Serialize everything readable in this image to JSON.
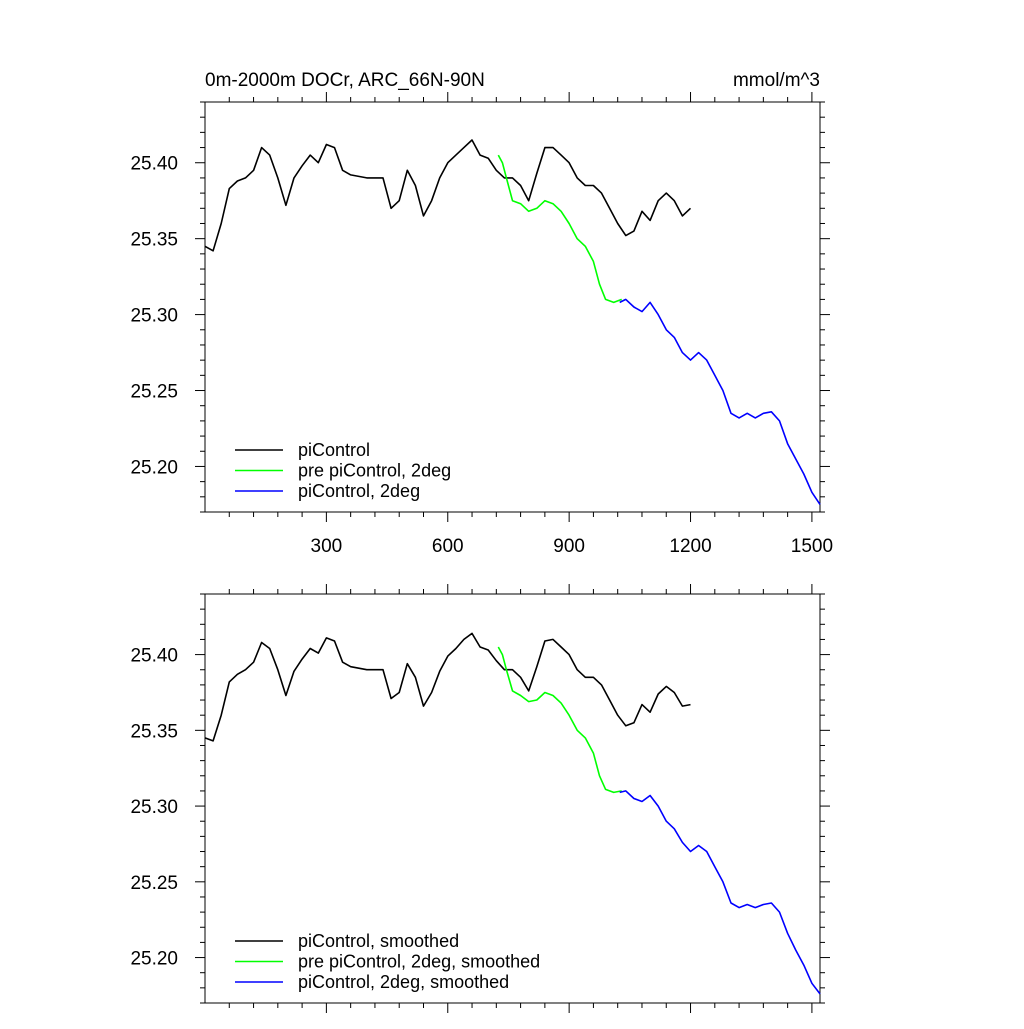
{
  "figure": {
    "title_left": "0m-2000m DOCr, ARC_66N-90N",
    "title_right": "mmol/m^3"
  },
  "colors": {
    "black": "#000000",
    "green": "#00ff00",
    "blue": "#0000ff"
  },
  "chart_data": [
    {
      "type": "line",
      "xlim": [
        0,
        1520
      ],
      "ylim": [
        25.17,
        25.44
      ],
      "x_ticks": [
        300,
        600,
        900,
        1200,
        1500
      ],
      "x_ticklabels": [
        "300",
        "600",
        "900",
        "1200",
        "1500"
      ],
      "y_ticks": [
        25.2,
        25.25,
        25.3,
        25.35,
        25.4
      ],
      "y_ticklabels": [
        "25.20",
        "25.25",
        "25.30",
        "25.35",
        "25.40"
      ],
      "legend": "bottom-left",
      "grid": false,
      "series": [
        {
          "name": "piControl",
          "color": "#000000",
          "points": [
            [
              0,
              25.345
            ],
            [
              20,
              25.342
            ],
            [
              40,
              25.36
            ],
            [
              60,
              25.383
            ],
            [
              80,
              25.388
            ],
            [
              100,
              25.39
            ],
            [
              120,
              25.395
            ],
            [
              140,
              25.41
            ],
            [
              160,
              25.405
            ],
            [
              180,
              25.39
            ],
            [
              200,
              25.372
            ],
            [
              220,
              25.39
            ],
            [
              240,
              25.398
            ],
            [
              260,
              25.405
            ],
            [
              280,
              25.4
            ],
            [
              300,
              25.412
            ],
            [
              320,
              25.41
            ],
            [
              340,
              25.395
            ],
            [
              360,
              25.392
            ],
            [
              400,
              25.39
            ],
            [
              440,
              25.39
            ],
            [
              460,
              25.37
            ],
            [
              480,
              25.375
            ],
            [
              500,
              25.395
            ],
            [
              520,
              25.385
            ],
            [
              540,
              25.365
            ],
            [
              560,
              25.375
            ],
            [
              580,
              25.39
            ],
            [
              600,
              25.4
            ],
            [
              620,
              25.405
            ],
            [
              640,
              25.41
            ],
            [
              660,
              25.415
            ],
            [
              680,
              25.405
            ],
            [
              700,
              25.403
            ],
            [
              720,
              25.395
            ],
            [
              740,
              25.39
            ],
            [
              760,
              25.39
            ],
            [
              780,
              25.385
            ],
            [
              800,
              25.375
            ],
            [
              820,
              25.393
            ],
            [
              840,
              25.41
            ],
            [
              860,
              25.41
            ],
            [
              880,
              25.405
            ],
            [
              900,
              25.4
            ],
            [
              920,
              25.39
            ],
            [
              940,
              25.385
            ],
            [
              960,
              25.385
            ],
            [
              980,
              25.38
            ],
            [
              1000,
              25.37
            ],
            [
              1020,
              25.36
            ],
            [
              1040,
              25.352
            ],
            [
              1060,
              25.355
            ],
            [
              1080,
              25.368
            ],
            [
              1100,
              25.362
            ],
            [
              1120,
              25.375
            ],
            [
              1140,
              25.38
            ],
            [
              1160,
              25.375
            ],
            [
              1180,
              25.365
            ],
            [
              1200,
              25.37
            ]
          ]
        },
        {
          "name": "pre piControl, 2deg",
          "color": "#00ff00",
          "points": [
            [
              725,
              25.405
            ],
            [
              735,
              25.4
            ],
            [
              745,
              25.39
            ],
            [
              760,
              25.375
            ],
            [
              780,
              25.373
            ],
            [
              800,
              25.368
            ],
            [
              820,
              25.37
            ],
            [
              840,
              25.375
            ],
            [
              860,
              25.373
            ],
            [
              880,
              25.368
            ],
            [
              900,
              25.36
            ],
            [
              920,
              25.35
            ],
            [
              940,
              25.345
            ],
            [
              960,
              25.335
            ],
            [
              975,
              25.32
            ],
            [
              990,
              25.31
            ],
            [
              1010,
              25.308
            ],
            [
              1030,
              25.31
            ]
          ]
        },
        {
          "name": "piControl, 2deg",
          "color": "#0000ff",
          "points": [
            [
              1025,
              25.308
            ],
            [
              1040,
              25.31
            ],
            [
              1060,
              25.305
            ],
            [
              1080,
              25.302
            ],
            [
              1100,
              25.308
            ],
            [
              1120,
              25.3
            ],
            [
              1140,
              25.29
            ],
            [
              1160,
              25.285
            ],
            [
              1180,
              25.275
            ],
            [
              1200,
              25.27
            ],
            [
              1220,
              25.275
            ],
            [
              1240,
              25.27
            ],
            [
              1260,
              25.26
            ],
            [
              1280,
              25.25
            ],
            [
              1300,
              25.235
            ],
            [
              1320,
              25.232
            ],
            [
              1340,
              25.235
            ],
            [
              1360,
              25.232
            ],
            [
              1380,
              25.235
            ],
            [
              1400,
              25.236
            ],
            [
              1420,
              25.23
            ],
            [
              1440,
              25.215
            ],
            [
              1460,
              25.205
            ],
            [
              1480,
              25.195
            ],
            [
              1500,
              25.183
            ],
            [
              1520,
              25.175
            ]
          ]
        }
      ]
    },
    {
      "type": "line",
      "xlim": [
        0,
        1520
      ],
      "ylim": [
        25.17,
        25.44
      ],
      "x_ticks": [
        300,
        600,
        900,
        1200,
        1500
      ],
      "x_ticklabels": [],
      "y_ticks": [
        25.2,
        25.25,
        25.3,
        25.35,
        25.4
      ],
      "y_ticklabels": [
        "25.20",
        "25.25",
        "25.30",
        "25.35",
        "25.40"
      ],
      "legend": "bottom-left",
      "grid": false,
      "series": [
        {
          "name": "piControl, smoothed",
          "color": "#000000",
          "points": [
            [
              0,
              25.345
            ],
            [
              20,
              25.343
            ],
            [
              40,
              25.36
            ],
            [
              60,
              25.382
            ],
            [
              80,
              25.387
            ],
            [
              100,
              25.39
            ],
            [
              120,
              25.395
            ],
            [
              140,
              25.408
            ],
            [
              160,
              25.404
            ],
            [
              180,
              25.39
            ],
            [
              200,
              25.373
            ],
            [
              220,
              25.389
            ],
            [
              240,
              25.397
            ],
            [
              260,
              25.404
            ],
            [
              280,
              25.401
            ],
            [
              300,
              25.411
            ],
            [
              320,
              25.409
            ],
            [
              340,
              25.395
            ],
            [
              360,
              25.392
            ],
            [
              400,
              25.39
            ],
            [
              440,
              25.39
            ],
            [
              460,
              25.371
            ],
            [
              480,
              25.375
            ],
            [
              500,
              25.394
            ],
            [
              520,
              25.385
            ],
            [
              540,
              25.366
            ],
            [
              560,
              25.375
            ],
            [
              580,
              25.389
            ],
            [
              600,
              25.399
            ],
            [
              620,
              25.404
            ],
            [
              640,
              25.41
            ],
            [
              660,
              25.414
            ],
            [
              680,
              25.405
            ],
            [
              700,
              25.403
            ],
            [
              720,
              25.396
            ],
            [
              740,
              25.39
            ],
            [
              760,
              25.39
            ],
            [
              780,
              25.385
            ],
            [
              800,
              25.376
            ],
            [
              820,
              25.392
            ],
            [
              840,
              25.409
            ],
            [
              860,
              25.41
            ],
            [
              880,
              25.405
            ],
            [
              900,
              25.4
            ],
            [
              920,
              25.39
            ],
            [
              940,
              25.385
            ],
            [
              960,
              25.385
            ],
            [
              980,
              25.38
            ],
            [
              1000,
              25.37
            ],
            [
              1020,
              25.36
            ],
            [
              1040,
              25.353
            ],
            [
              1060,
              25.355
            ],
            [
              1080,
              25.367
            ],
            [
              1100,
              25.362
            ],
            [
              1120,
              25.374
            ],
            [
              1140,
              25.379
            ],
            [
              1160,
              25.375
            ],
            [
              1180,
              25.366
            ],
            [
              1200,
              25.367
            ]
          ]
        },
        {
          "name": "pre piControl, 2deg, smoothed",
          "color": "#00ff00",
          "points": [
            [
              725,
              25.405
            ],
            [
              735,
              25.4
            ],
            [
              745,
              25.39
            ],
            [
              760,
              25.376
            ],
            [
              780,
              25.373
            ],
            [
              800,
              25.369
            ],
            [
              820,
              25.37
            ],
            [
              840,
              25.375
            ],
            [
              860,
              25.373
            ],
            [
              880,
              25.368
            ],
            [
              900,
              25.36
            ],
            [
              920,
              25.35
            ],
            [
              940,
              25.345
            ],
            [
              960,
              25.335
            ],
            [
              975,
              25.32
            ],
            [
              990,
              25.311
            ],
            [
              1010,
              25.309
            ],
            [
              1030,
              25.31
            ]
          ]
        },
        {
          "name": "piControl, 2deg, smoothed",
          "color": "#0000ff",
          "points": [
            [
              1025,
              25.309
            ],
            [
              1040,
              25.31
            ],
            [
              1060,
              25.305
            ],
            [
              1080,
              25.303
            ],
            [
              1100,
              25.307
            ],
            [
              1120,
              25.3
            ],
            [
              1140,
              25.29
            ],
            [
              1160,
              25.285
            ],
            [
              1180,
              25.276
            ],
            [
              1200,
              25.27
            ],
            [
              1220,
              25.274
            ],
            [
              1240,
              25.27
            ],
            [
              1260,
              25.26
            ],
            [
              1280,
              25.25
            ],
            [
              1300,
              25.236
            ],
            [
              1320,
              25.233
            ],
            [
              1340,
              25.235
            ],
            [
              1360,
              25.233
            ],
            [
              1380,
              25.235
            ],
            [
              1400,
              25.236
            ],
            [
              1420,
              25.23
            ],
            [
              1440,
              25.216
            ],
            [
              1460,
              25.205
            ],
            [
              1480,
              25.195
            ],
            [
              1500,
              25.183
            ],
            [
              1520,
              25.176
            ]
          ]
        }
      ]
    }
  ]
}
